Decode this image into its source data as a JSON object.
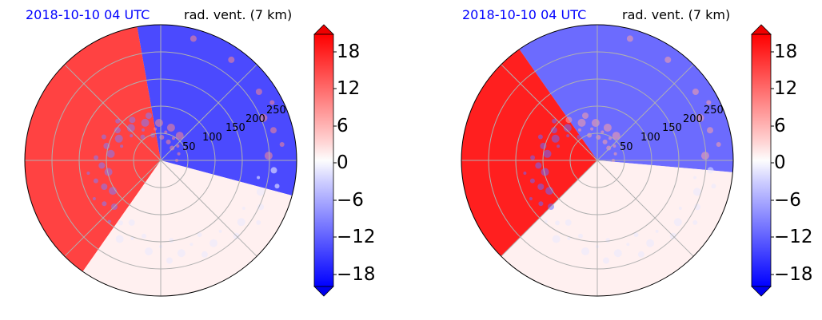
{
  "chart_data": [
    {
      "type": "heatmap",
      "title_left": "2018-10-10 04 UTC",
      "title_right": "rad. vent. (7 km)",
      "range_ring_labels": [
        "50",
        "100",
        "150",
        "200",
        "250"
      ],
      "colorbar": {
        "ticks": [
          "18",
          "12",
          "6",
          "0",
          "−6",
          "−12",
          "−18"
        ],
        "range": [
          -20,
          20
        ],
        "extend": "both",
        "colors": {
          "positive": "#ff0000",
          "neutral": "#fdf0f0",
          "negative": "#0000ff"
        }
      },
      "description_sectors": [
        {
          "from_deg": -15,
          "to_deg": 100,
          "value": -15
        },
        {
          "from_deg": 100,
          "to_deg": 235,
          "value": 16
        },
        {
          "from_deg": 235,
          "to_deg": 345,
          "value": 1
        }
      ]
    },
    {
      "type": "heatmap",
      "title_left": "2018-10-10 04 UTC",
      "title_right": "rad. vent. (7 km)",
      "range_ring_labels": [
        "50",
        "100",
        "150",
        "200",
        "250"
      ],
      "colorbar": {
        "ticks": [
          "18",
          "12",
          "6",
          "0",
          "−6",
          "−12",
          "−18"
        ],
        "range": [
          -20,
          20
        ],
        "extend": "both",
        "colors": {
          "positive": "#ff0000",
          "neutral": "#fdf0f0",
          "negative": "#0000ff"
        }
      },
      "description_sectors": [
        {
          "from_deg": -5,
          "to_deg": 125,
          "value": -12
        },
        {
          "from_deg": 125,
          "to_deg": 225,
          "value": 19
        },
        {
          "from_deg": 225,
          "to_deg": 355,
          "value": 1
        }
      ]
    }
  ]
}
